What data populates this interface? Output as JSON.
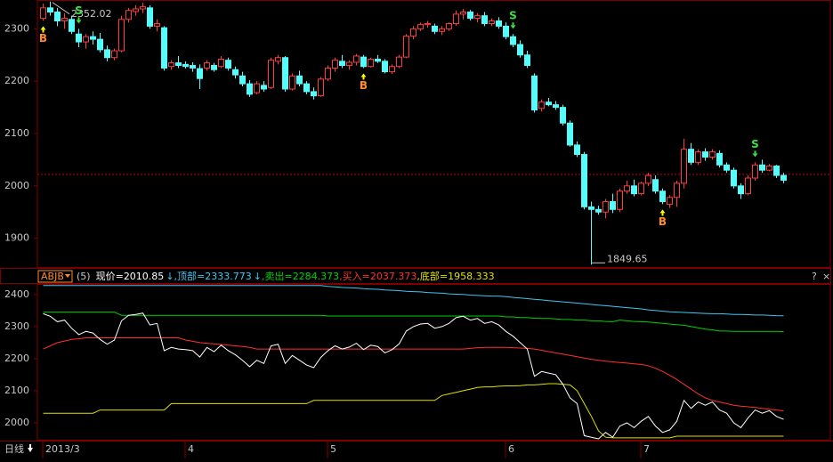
{
  "chart_data": {
    "type": "candlestick",
    "categories": [
      "2013/3",
      null,
      null,
      null,
      null,
      null,
      null,
      null,
      null,
      null,
      null,
      null,
      null,
      null,
      null,
      null,
      null,
      null,
      null,
      null,
      "4",
      null,
      null,
      null,
      null,
      null,
      null,
      null,
      null,
      null,
      null,
      null,
      null,
      null,
      null,
      null,
      null,
      null,
      null,
      null,
      "5",
      null,
      null,
      null,
      null,
      null,
      null,
      null,
      null,
      null,
      null,
      null,
      null,
      null,
      null,
      null,
      null,
      null,
      null,
      null,
      null,
      null,
      null,
      null,
      null,
      "6",
      null,
      null,
      null,
      null,
      null,
      null,
      null,
      null,
      null,
      null,
      null,
      null,
      null,
      null,
      null,
      null,
      null,
      null,
      "7",
      null,
      null,
      null,
      null,
      null,
      null,
      null,
      null,
      null,
      null,
      null,
      null,
      null,
      null,
      null,
      null,
      null,
      null,
      null,
      null
    ],
    "open": [
      2320,
      2340,
      2332,
      2315,
      2318,
      2290,
      2275,
      2285,
      2280,
      2260,
      2245,
      2258,
      2318,
      2333,
      2338,
      2340,
      2305,
      2302,
      2228,
      2235,
      2232,
      2230,
      2224,
      2225,
      2230,
      2228,
      2240,
      2222,
      2210,
      2195,
      2178,
      2192,
      2188,
      2238,
      2245,
      2185,
      2210,
      2195,
      2180,
      2172,
      2204,
      2225,
      2238,
      2230,
      2236,
      2246,
      2228,
      2242,
      2238,
      2218,
      2228,
      2246,
      2286,
      2300,
      2308,
      2305,
      2295,
      2300,
      2310,
      2328,
      2332,
      2320,
      2325,
      2310,
      2315,
      2305,
      2285,
      2270,
      2250,
      2210,
      2148,
      2160,
      2155,
      2150,
      2120,
      2078,
      2060,
      1960,
      1955,
      1950,
      1970,
      1955,
      1990,
      2000,
      1985,
      2005,
      2012,
      1990,
      1965,
      1978,
      2005,
      2070,
      2045,
      2065,
      2055,
      2062,
      2040,
      2030,
      2000,
      1985,
      2015,
      2040,
      2030,
      2038,
      2020
    ],
    "high": [
      2348,
      2352.02,
      2340,
      2330,
      2325,
      2300,
      2290,
      2295,
      2292,
      2268,
      2262,
      2325,
      2340,
      2345,
      2350,
      2345,
      2318,
      2305,
      2240,
      2248,
      2238,
      2236,
      2232,
      2240,
      2235,
      2248,
      2245,
      2228,
      2218,
      2202,
      2200,
      2200,
      2245,
      2250,
      2248,
      2215,
      2220,
      2200,
      2188,
      2208,
      2230,
      2245,
      2250,
      2240,
      2252,
      2250,
      2245,
      2250,
      2242,
      2232,
      2250,
      2290,
      2305,
      2312,
      2315,
      2310,
      2305,
      2312,
      2335,
      2338,
      2336,
      2330,
      2332,
      2320,
      2322,
      2312,
      2290,
      2278,
      2258,
      2215,
      2165,
      2168,
      2162,
      2155,
      2125,
      2085,
      2065,
      1970,
      1962,
      1975,
      1985,
      1995,
      2010,
      2012,
      2008,
      2025,
      2020,
      1995,
      1982,
      2010,
      2090,
      2082,
      2070,
      2072,
      2070,
      2068,
      2045,
      2035,
      2005,
      2020,
      2045,
      2050,
      2042,
      2040,
      2025
    ],
    "low": [
      2315,
      2325,
      2305,
      2300,
      2290,
      2265,
      2262,
      2270,
      2255,
      2238,
      2240,
      2255,
      2312,
      2325,
      2330,
      2300,
      2295,
      2220,
      2222,
      2225,
      2224,
      2218,
      2185,
      2220,
      2218,
      2225,
      2220,
      2205,
      2190,
      2170,
      2175,
      2180,
      2185,
      2232,
      2180,
      2182,
      2190,
      2175,
      2165,
      2170,
      2200,
      2218,
      2225,
      2222,
      2230,
      2225,
      2226,
      2235,
      2215,
      2214,
      2225,
      2244,
      2280,
      2296,
      2302,
      2290,
      2288,
      2296,
      2306,
      2318,
      2316,
      2312,
      2305,
      2305,
      2300,
      2280,
      2265,
      2245,
      2225,
      2140,
      2142,
      2152,
      2145,
      2115,
      2075,
      2055,
      1955,
      1849.65,
      1945,
      1938,
      1948,
      1950,
      1985,
      1980,
      1982,
      2000,
      1985,
      1965,
      1958,
      1960,
      1995,
      2040,
      2040,
      2048,
      2050,
      2035,
      2025,
      1995,
      1975,
      1982,
      2010,
      2025,
      2028,
      2015,
      2005
    ],
    "close": [
      2340,
      2332,
      2315,
      2320,
      2295,
      2275,
      2285,
      2280,
      2260,
      2245,
      2258,
      2318,
      2335,
      2338,
      2342,
      2305,
      2310,
      2225,
      2235,
      2230,
      2228,
      2225,
      2205,
      2235,
      2222,
      2242,
      2225,
      2212,
      2195,
      2175,
      2195,
      2185,
      2240,
      2245,
      2185,
      2210,
      2195,
      2180,
      2172,
      2204,
      2225,
      2240,
      2230,
      2236,
      2248,
      2228,
      2242,
      2238,
      2218,
      2228,
      2246,
      2286,
      2300,
      2308,
      2310,
      2295,
      2300,
      2310,
      2328,
      2332,
      2320,
      2325,
      2310,
      2315,
      2305,
      2285,
      2270,
      2250,
      2230,
      2145,
      2160,
      2155,
      2150,
      2120,
      2078,
      2060,
      1960,
      1955,
      1950,
      1970,
      1955,
      1990,
      2000,
      1985,
      2005,
      2020,
      1990,
      1970,
      1978,
      2005,
      2070,
      2045,
      2065,
      2055,
      2065,
      2040,
      2030,
      2000,
      1985,
      2015,
      2040,
      2030,
      2038,
      2020,
      2010.85
    ],
    "ylim": [
      1845,
      2355
    ],
    "yticks": [
      1900,
      2000,
      2100,
      2200,
      2300
    ],
    "up_color": "#ff3c3c",
    "down_color": "#54fcfc",
    "reference_line": 2022,
    "reference_color": "#c00000",
    "signals": [
      "B",
      null,
      null,
      null,
      null,
      "S",
      null,
      null,
      null,
      null,
      null,
      null,
      null,
      null,
      null,
      null,
      null,
      null,
      null,
      null,
      null,
      null,
      null,
      null,
      null,
      null,
      null,
      null,
      null,
      null,
      null,
      null,
      null,
      null,
      null,
      null,
      null,
      null,
      null,
      null,
      null,
      null,
      null,
      null,
      null,
      "B",
      null,
      null,
      null,
      null,
      null,
      null,
      null,
      null,
      null,
      null,
      null,
      null,
      null,
      null,
      null,
      null,
      null,
      null,
      null,
      null,
      "S",
      null,
      null,
      null,
      null,
      null,
      null,
      null,
      null,
      null,
      null,
      null,
      null,
      null,
      null,
      null,
      null,
      null,
      null,
      null,
      null,
      "B",
      null,
      null,
      null,
      null,
      null,
      null,
      null,
      null,
      null,
      null,
      null,
      null,
      "S",
      null,
      null,
      null,
      null
    ],
    "period": "日线",
    "toolbar": [
      "?",
      "×"
    ],
    "indicator": {
      "name": "ABJB",
      "param": "(5)",
      "price_label": "现价=",
      "price_arrow": "↓",
      "price_color": "#ffffff",
      "ylim": [
        1950,
        2430
      ],
      "yticks": [
        2000,
        2100,
        2200,
        2300,
        2400
      ],
      "series": [
        {
          "name": ",顶部=",
          "color": "#3cc8f0",
          "arrow": "↓",
          "values": [
            2428,
            2428,
            2428,
            2428,
            2428,
            2428,
            2428,
            2428,
            2428,
            2428,
            2428,
            2428,
            2428,
            2428,
            2428,
            2428,
            2428,
            2428,
            2428,
            2428,
            2428,
            2428,
            2428,
            2428,
            2428,
            2428,
            2428,
            2428,
            2428,
            2428,
            2428,
            2428,
            2428,
            2428,
            2428,
            2428,
            2428,
            2428,
            2428,
            2428,
            2425,
            2424,
            2422,
            2421,
            2420,
            2418,
            2417,
            2416,
            2414,
            2413,
            2412,
            2410,
            2409,
            2408,
            2406,
            2405,
            2404,
            2402,
            2401,
            2400,
            2398,
            2397,
            2396,
            2395,
            2395,
            2393,
            2391,
            2389,
            2387,
            2385,
            2383,
            2381,
            2379,
            2377,
            2375,
            2373,
            2371,
            2369,
            2367,
            2365,
            2363,
            2361,
            2359,
            2357,
            2355,
            2352,
            2350,
            2348,
            2346,
            2345,
            2344,
            2343,
            2342,
            2341,
            2340,
            2340,
            2339,
            2338,
            2338,
            2337,
            2336,
            2336,
            2335,
            2334,
            2333.773
          ]
        },
        {
          "name": ",卖出=",
          "color": "#00d000",
          "values": [
            2345,
            2345,
            2345,
            2345,
            2345,
            2345,
            2345,
            2345,
            2345,
            2345,
            2345,
            2335,
            2335,
            2335,
            2335,
            2335,
            2335,
            2335,
            2335,
            2335,
            2335,
            2335,
            2335,
            2335,
            2335,
            2335,
            2335,
            2335,
            2335,
            2335,
            2335,
            2335,
            2335,
            2335,
            2335,
            2335,
            2335,
            2335,
            2335,
            2335,
            2333,
            2333,
            2333,
            2333,
            2333,
            2333,
            2333,
            2333,
            2333,
            2333,
            2333,
            2333,
            2333,
            2333,
            2333,
            2333,
            2333,
            2333,
            2333,
            2333,
            2333,
            2333,
            2333,
            2333,
            2333,
            2330,
            2330,
            2328,
            2328,
            2326,
            2325,
            2325,
            2324,
            2322,
            2322,
            2320,
            2320,
            2318,
            2318,
            2316,
            2315,
            2320,
            2318,
            2316,
            2315,
            2314,
            2312,
            2310,
            2308,
            2306,
            2304,
            2300,
            2296,
            2292,
            2290,
            2286,
            2286,
            2285,
            2285,
            2285,
            2285,
            2285,
            2285,
            2285,
            2284.373
          ]
        },
        {
          "name": ",买入=",
          "color": "#ff3030",
          "values": [
            2230,
            2240,
            2250,
            2255,
            2260,
            2262,
            2265,
            2265,
            2265,
            2265,
            2265,
            2265,
            2265,
            2265,
            2265,
            2265,
            2265,
            2265,
            2265,
            2265,
            2258,
            2254,
            2250,
            2248,
            2246,
            2244,
            2242,
            2240,
            2238,
            2235,
            2230,
            2230,
            2230,
            2230,
            2230,
            2230,
            2230,
            2230,
            2230,
            2230,
            2230,
            2230,
            2230,
            2230,
            2230,
            2230,
            2230,
            2230,
            2230,
            2230,
            2230,
            2230,
            2230,
            2230,
            2230,
            2230,
            2230,
            2230,
            2230,
            2230,
            2232,
            2234,
            2235,
            2235,
            2235,
            2235,
            2234,
            2233,
            2232,
            2230,
            2226,
            2222,
            2218,
            2214,
            2210,
            2206,
            2202,
            2198,
            2195,
            2192,
            2190,
            2188,
            2186,
            2184,
            2182,
            2178,
            2170,
            2160,
            2148,
            2135,
            2120,
            2105,
            2090,
            2078,
            2070,
            2065,
            2060,
            2055,
            2052,
            2050,
            2048,
            2045,
            2042,
            2040,
            2037.373
          ]
        },
        {
          "name": ",底部=",
          "color": "#e0e000",
          "values": [
            2030,
            2030,
            2030,
            2030,
            2030,
            2030,
            2030,
            2030,
            2040,
            2040,
            2040,
            2040,
            2040,
            2040,
            2040,
            2040,
            2040,
            2040,
            2060,
            2060,
            2060,
            2060,
            2060,
            2060,
            2060,
            2060,
            2060,
            2060,
            2060,
            2060,
            2060,
            2060,
            2060,
            2060,
            2060,
            2060,
            2060,
            2060,
            2070,
            2070,
            2070,
            2070,
            2070,
            2070,
            2070,
            2070,
            2070,
            2070,
            2070,
            2070,
            2070,
            2070,
            2070,
            2070,
            2070,
            2070,
            2085,
            2090,
            2095,
            2100,
            2105,
            2110,
            2112,
            2112,
            2114,
            2115,
            2115,
            2116,
            2118,
            2118,
            2120,
            2122,
            2122,
            2120,
            2118,
            2100,
            2060,
            2020,
            1975,
            1955,
            1953,
            1953,
            1953,
            1953,
            1953,
            1953,
            1953,
            1953,
            1953,
            1958.333,
            1958.333,
            1958.333,
            1958.333,
            1958.333,
            1958.333,
            1958.333,
            1958.333,
            1958.333,
            1958.333,
            1958.333,
            1958.333,
            1958.333,
            1958.333,
            1958.333,
            1958.333
          ]
        }
      ]
    }
  }
}
